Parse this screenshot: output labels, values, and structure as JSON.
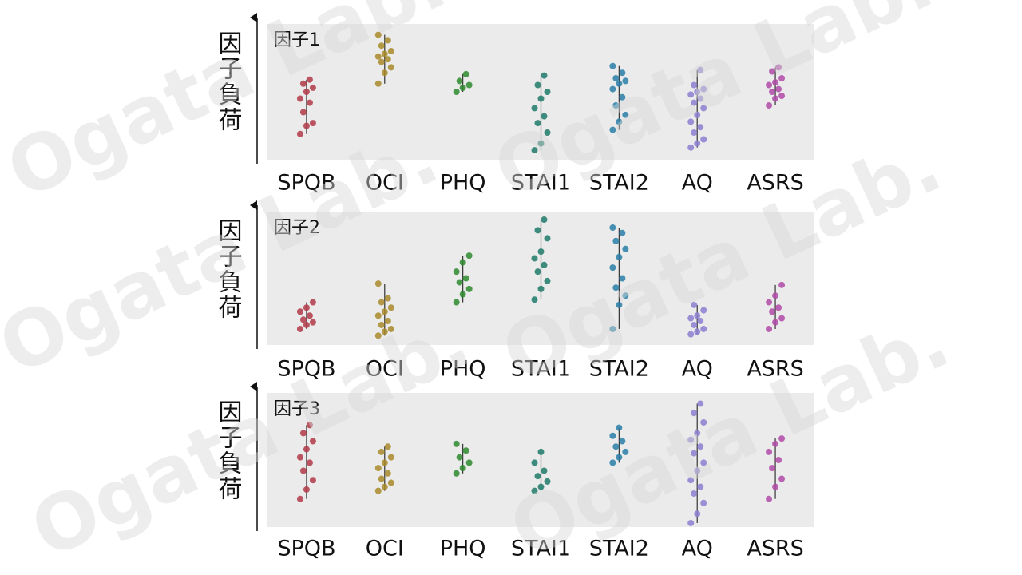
{
  "chart_data": [
    {
      "type": "strip",
      "label": "因子1",
      "ylabel": "因子負荷",
      "ylim": [
        0,
        1
      ],
      "categories": [
        "SPQB",
        "OCI",
        "PHQ",
        "STAI1",
        "STAI2",
        "AQ",
        "ASRS"
      ],
      "colors": [
        "#b03a48",
        "#a88a2a",
        "#2e8b2e",
        "#1e7a6a",
        "#2a7fa8",
        "#8c7fd0",
        "#b04aa8"
      ],
      "values": [
        [
          0.19,
          0.25,
          0.27,
          0.35,
          0.42,
          0.45,
          0.5,
          0.53,
          0.56,
          0.59
        ],
        [
          0.56,
          0.64,
          0.68,
          0.72,
          0.74,
          0.76,
          0.78,
          0.8,
          0.84,
          0.88,
          0.92
        ],
        [
          0.5,
          0.53,
          0.55,
          0.58,
          0.63
        ],
        [
          0.07,
          0.12,
          0.2,
          0.27,
          0.32,
          0.38,
          0.45,
          0.5,
          0.55,
          0.62
        ],
        [
          0.22,
          0.28,
          0.33,
          0.4,
          0.46,
          0.52,
          0.56,
          0.58,
          0.6,
          0.64,
          0.69
        ],
        [
          0.09,
          0.12,
          0.15,
          0.2,
          0.24,
          0.28,
          0.33,
          0.38,
          0.42,
          0.45,
          0.48,
          0.5,
          0.52,
          0.55,
          0.66
        ],
        [
          0.4,
          0.45,
          0.47,
          0.5,
          0.52,
          0.55,
          0.57,
          0.6,
          0.65,
          0.68
        ]
      ]
    },
    {
      "type": "strip",
      "label": "因子2",
      "ylabel": "因子負荷",
      "ylim": [
        0,
        1
      ],
      "categories": [
        "SPQB",
        "OCI",
        "PHQ",
        "STAI1",
        "STAI2",
        "AQ",
        "ASRS"
      ],
      "colors": [
        "#b03a48",
        "#a88a2a",
        "#2e8b2e",
        "#1e7a6a",
        "#2a7fa8",
        "#8c7fd0",
        "#b04aa8"
      ],
      "values": [
        [
          0.12,
          0.15,
          0.17,
          0.19,
          0.22,
          0.25,
          0.28,
          0.32
        ],
        [
          0.07,
          0.1,
          0.12,
          0.15,
          0.18,
          0.22,
          0.25,
          0.28,
          0.32,
          0.35,
          0.46
        ],
        [
          0.32,
          0.38,
          0.42,
          0.47,
          0.5,
          0.55,
          0.62,
          0.67
        ],
        [
          0.34,
          0.42,
          0.48,
          0.55,
          0.6,
          0.65,
          0.7,
          0.8,
          0.86,
          0.94
        ],
        [
          0.12,
          0.3,
          0.37,
          0.43,
          0.5,
          0.58,
          0.66,
          0.72,
          0.78,
          0.84,
          0.88
        ],
        [
          0.08,
          0.1,
          0.12,
          0.15,
          0.18,
          0.2,
          0.22,
          0.26,
          0.3
        ],
        [
          0.12,
          0.17,
          0.2,
          0.25,
          0.28,
          0.32,
          0.37,
          0.45
        ]
      ]
    },
    {
      "type": "strip",
      "label": "因子3",
      "ylabel": "因子負荷",
      "ylim": [
        0,
        1
      ],
      "categories": [
        "SPQB",
        "OCI",
        "PHQ",
        "STAI1",
        "STAI2",
        "AQ",
        "ASRS"
      ],
      "colors": [
        "#b03a48",
        "#a88a2a",
        "#2e8b2e",
        "#1e7a6a",
        "#2a7fa8",
        "#8c7fd0",
        "#b04aa8"
      ],
      "values": [
        [
          0.21,
          0.28,
          0.35,
          0.42,
          0.48,
          0.52,
          0.58,
          0.64,
          0.7,
          0.76
        ],
        [
          0.27,
          0.3,
          0.33,
          0.36,
          0.4,
          0.44,
          0.48,
          0.52,
          0.56,
          0.6
        ],
        [
          0.4,
          0.44,
          0.48,
          0.52,
          0.57,
          0.62
        ],
        [
          0.27,
          0.3,
          0.34,
          0.38,
          0.42,
          0.48,
          0.56
        ],
        [
          0.48,
          0.52,
          0.56,
          0.6,
          0.64,
          0.68,
          0.74
        ],
        [
          0.03,
          0.1,
          0.18,
          0.25,
          0.3,
          0.35,
          0.42,
          0.48,
          0.55,
          0.6,
          0.65,
          0.7,
          0.78,
          0.85,
          0.92
        ],
        [
          0.21,
          0.3,
          0.36,
          0.44,
          0.5,
          0.56,
          0.62,
          0.66
        ]
      ]
    }
  ],
  "watermark": "Ogata Lab."
}
